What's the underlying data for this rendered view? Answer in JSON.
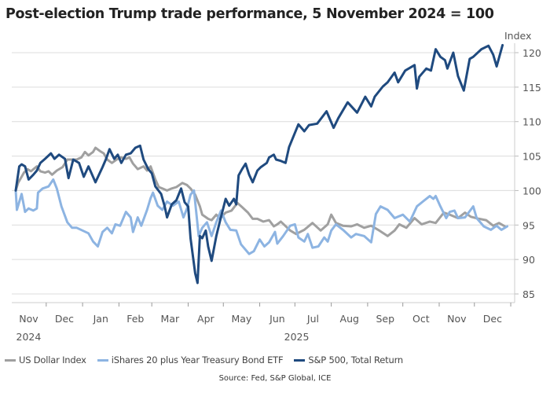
{
  "chart_data": {
    "type": "line",
    "title": "Post-election Trump trade performance, 5 November 2024 = 100",
    "ylabel": "Index",
    "xlabel": "",
    "x_units": "days since 5 November 2024",
    "xlim": [
      0,
      424
    ],
    "ylim": [
      84,
      122
    ],
    "yticks": [
      85,
      90,
      95,
      100,
      105,
      110,
      115,
      120
    ],
    "grid": true,
    "legend_position": "bottom",
    "month_ticks": [
      -4,
      26,
      57,
      88,
      116,
      147,
      177,
      208,
      238,
      269,
      300,
      330,
      361,
      391,
      422
    ],
    "month_labels": [
      "Nov",
      "Dec",
      "Jan",
      "Feb",
      "Mar",
      "Apr",
      "May",
      "Jun",
      "Jul",
      "Aug",
      "Sep",
      "Oct",
      "Nov",
      "Dec"
    ],
    "year_labels": [
      {
        "label": "2024",
        "from": -4,
        "to": 26
      },
      {
        "label": "2025",
        "from": 57,
        "to": 422
      }
    ],
    "series": [
      {
        "name": "US Dollar Index",
        "color": "#a0a0a0",
        "points": [
          [
            0,
            100
          ],
          [
            2,
            101.1
          ],
          [
            7,
            102.6
          ],
          [
            10,
            103.1
          ],
          [
            13,
            102.8
          ],
          [
            18,
            103.5
          ],
          [
            21,
            102.8
          ],
          [
            25,
            102.6
          ],
          [
            28,
            102.8
          ],
          [
            31,
            102.3
          ],
          [
            35,
            102.9
          ],
          [
            40,
            103.4
          ],
          [
            44,
            104.5
          ],
          [
            48,
            104.5
          ],
          [
            52,
            104.5
          ],
          [
            56,
            104.8
          ],
          [
            59,
            105.6
          ],
          [
            62,
            105.1
          ],
          [
            66,
            105.6
          ],
          [
            68,
            106.2
          ],
          [
            72,
            105.7
          ],
          [
            75,
            105.4
          ],
          [
            78,
            104.5
          ],
          [
            82,
            104.0
          ],
          [
            86,
            104.5
          ],
          [
            90,
            104.8
          ],
          [
            94,
            104.6
          ],
          [
            97,
            104.8
          ],
          [
            100,
            103.9
          ],
          [
            104,
            103.1
          ],
          [
            109,
            103.5
          ],
          [
            112,
            102.9
          ],
          [
            115,
            103.5
          ],
          [
            119,
            101.6
          ],
          [
            122,
            100.5
          ],
          [
            125,
            100.3
          ],
          [
            129,
            100.0
          ],
          [
            133,
            100.3
          ],
          [
            137,
            100.5
          ],
          [
            142,
            101.1
          ],
          [
            146,
            100.8
          ],
          [
            149,
            100.3
          ],
          [
            153,
            99.4
          ],
          [
            157,
            97.7
          ],
          [
            159,
            96.5
          ],
          [
            164,
            95.9
          ],
          [
            167,
            95.7
          ],
          [
            171,
            96.5
          ],
          [
            174,
            95.9
          ],
          [
            179,
            96.8
          ],
          [
            184,
            97.1
          ],
          [
            189,
            98.2
          ],
          [
            193,
            97.6
          ],
          [
            198,
            96.8
          ],
          [
            202,
            95.9
          ],
          [
            206,
            95.9
          ],
          [
            211,
            95.5
          ],
          [
            216,
            95.7
          ],
          [
            220,
            94.8
          ],
          [
            223,
            95.1
          ],
          [
            226,
            95.5
          ],
          [
            234,
            94.2
          ],
          [
            239,
            93.7
          ],
          [
            246,
            94.3
          ],
          [
            253,
            95.3
          ],
          [
            260,
            94.2
          ],
          [
            266,
            95.1
          ],
          [
            269,
            96.5
          ],
          [
            273,
            95.3
          ],
          [
            279,
            94.9
          ],
          [
            286,
            94.8
          ],
          [
            291,
            95.1
          ],
          [
            297,
            94.6
          ],
          [
            303,
            94.9
          ],
          [
            309,
            94.3
          ],
          [
            317,
            93.4
          ],
          [
            323,
            94.2
          ],
          [
            327,
            95.1
          ],
          [
            333,
            94.6
          ],
          [
            340,
            96.0
          ],
          [
            346,
            95.1
          ],
          [
            353,
            95.5
          ],
          [
            358,
            95.3
          ],
          [
            365,
            96.8
          ],
          [
            370,
            96.5
          ],
          [
            377,
            96.0
          ],
          [
            383,
            96.8
          ],
          [
            388,
            96.2
          ],
          [
            395,
            95.9
          ],
          [
            401,
            95.7
          ],
          [
            407,
            94.9
          ],
          [
            412,
            95.3
          ],
          [
            417,
            94.8
          ]
        ]
      },
      {
        "name": "iShares 20 plus Year Treasury Bond ETF",
        "color": "#8db4e2",
        "points": [
          [
            0,
            100
          ],
          [
            1,
            97.2
          ],
          [
            5,
            99.5
          ],
          [
            8,
            96.9
          ],
          [
            11,
            97.4
          ],
          [
            15,
            97.1
          ],
          [
            18,
            97.4
          ],
          [
            19,
            99.7
          ],
          [
            23,
            100.3
          ],
          [
            28,
            100.6
          ],
          [
            32,
            101.6
          ],
          [
            35,
            100.3
          ],
          [
            39,
            97.7
          ],
          [
            44,
            95.4
          ],
          [
            48,
            94.6
          ],
          [
            52,
            94.6
          ],
          [
            57,
            94.2
          ],
          [
            62,
            93.8
          ],
          [
            66,
            92.6
          ],
          [
            70,
            91.9
          ],
          [
            74,
            94.0
          ],
          [
            78,
            94.6
          ],
          [
            82,
            93.8
          ],
          [
            85,
            95.1
          ],
          [
            89,
            94.9
          ],
          [
            94,
            96.9
          ],
          [
            98,
            96.1
          ],
          [
            100,
            94.0
          ],
          [
            104,
            96.1
          ],
          [
            107,
            94.9
          ],
          [
            112,
            97.2
          ],
          [
            115,
            98.9
          ],
          [
            117,
            99.7
          ],
          [
            121,
            97.8
          ],
          [
            125,
            97.2
          ],
          [
            129,
            98.4
          ],
          [
            134,
            97.8
          ],
          [
            139,
            98.4
          ],
          [
            143,
            96.1
          ],
          [
            146,
            97.4
          ],
          [
            149,
            99.4
          ],
          [
            152,
            100.0
          ],
          [
            156,
            93.4
          ],
          [
            159,
            94.6
          ],
          [
            163,
            95.4
          ],
          [
            167,
            93.4
          ],
          [
            171,
            95.4
          ],
          [
            175,
            97.1
          ],
          [
            179,
            95.4
          ],
          [
            183,
            94.3
          ],
          [
            188,
            94.2
          ],
          [
            192,
            92.2
          ],
          [
            199,
            90.8
          ],
          [
            203,
            91.2
          ],
          [
            208,
            92.9
          ],
          [
            212,
            91.9
          ],
          [
            216,
            92.5
          ],
          [
            221,
            94.0
          ],
          [
            223,
            92.3
          ],
          [
            228,
            93.4
          ],
          [
            234,
            94.9
          ],
          [
            238,
            95.1
          ],
          [
            241,
            93.2
          ],
          [
            246,
            92.6
          ],
          [
            249,
            93.7
          ],
          [
            253,
            91.7
          ],
          [
            258,
            91.9
          ],
          [
            263,
            93.2
          ],
          [
            266,
            92.6
          ],
          [
            269,
            94.2
          ],
          [
            273,
            95.1
          ],
          [
            279,
            94.3
          ],
          [
            286,
            93.2
          ],
          [
            290,
            93.7
          ],
          [
            297,
            93.4
          ],
          [
            303,
            92.5
          ],
          [
            307,
            96.6
          ],
          [
            311,
            97.7
          ],
          [
            317,
            97.2
          ],
          [
            323,
            96.0
          ],
          [
            330,
            96.5
          ],
          [
            336,
            95.5
          ],
          [
            342,
            97.7
          ],
          [
            347,
            98.4
          ],
          [
            353,
            99.2
          ],
          [
            356,
            98.8
          ],
          [
            358,
            99.2
          ],
          [
            362,
            97.7
          ],
          [
            367,
            96.0
          ],
          [
            370,
            96.9
          ],
          [
            374,
            97.1
          ],
          [
            377,
            96.0
          ],
          [
            383,
            96.1
          ],
          [
            390,
            97.7
          ],
          [
            393,
            96.0
          ],
          [
            399,
            94.8
          ],
          [
            405,
            94.3
          ],
          [
            410,
            94.9
          ],
          [
            414,
            94.3
          ],
          [
            419,
            94.8
          ]
        ]
      },
      {
        "name": "S&P 500, Total Return",
        "color": "#1f4a7f",
        "points": [
          [
            0,
            100
          ],
          [
            3,
            103.5
          ],
          [
            5,
            103.8
          ],
          [
            8,
            103.5
          ],
          [
            11,
            101.6
          ],
          [
            15,
            102.3
          ],
          [
            18,
            102.9
          ],
          [
            21,
            104.0
          ],
          [
            25,
            104.6
          ],
          [
            30,
            105.4
          ],
          [
            33,
            104.6
          ],
          [
            37,
            105.2
          ],
          [
            42,
            104.6
          ],
          [
            45,
            101.8
          ],
          [
            49,
            104.5
          ],
          [
            54,
            104.0
          ],
          [
            58,
            102.0
          ],
          [
            62,
            103.5
          ],
          [
            68,
            101.2
          ],
          [
            74,
            103.4
          ],
          [
            77,
            104.6
          ],
          [
            80,
            106.0
          ],
          [
            84,
            104.6
          ],
          [
            87,
            105.2
          ],
          [
            90,
            104.0
          ],
          [
            94,
            105.2
          ],
          [
            98,
            105.4
          ],
          [
            102,
            106.2
          ],
          [
            106,
            106.5
          ],
          [
            109,
            104.5
          ],
          [
            113,
            103.1
          ],
          [
            116,
            102.5
          ],
          [
            119,
            100.6
          ],
          [
            124,
            99.5
          ],
          [
            127,
            97.7
          ],
          [
            129,
            96.1
          ],
          [
            133,
            98.0
          ],
          [
            137,
            98.6
          ],
          [
            141,
            100.3
          ],
          [
            144,
            98.3
          ],
          [
            147,
            97.7
          ],
          [
            149,
            93.1
          ],
          [
            153,
            88.0
          ],
          [
            155,
            86.6
          ],
          [
            157,
            93.4
          ],
          [
            159,
            93.1
          ],
          [
            162,
            94.2
          ],
          [
            164,
            91.9
          ],
          [
            167,
            89.8
          ],
          [
            171,
            93.4
          ],
          [
            174,
            95.5
          ],
          [
            179,
            98.8
          ],
          [
            182,
            97.8
          ],
          [
            186,
            98.8
          ],
          [
            188,
            98.0
          ],
          [
            190,
            102.2
          ],
          [
            193,
            103.1
          ],
          [
            196,
            103.9
          ],
          [
            199,
            102.3
          ],
          [
            202,
            101.2
          ],
          [
            206,
            102.9
          ],
          [
            209,
            103.4
          ],
          [
            214,
            104.0
          ],
          [
            216,
            104.8
          ],
          [
            220,
            105.2
          ],
          [
            222,
            104.5
          ],
          [
            226,
            104.3
          ],
          [
            230,
            104.0
          ],
          [
            233,
            106.3
          ],
          [
            241,
            109.6
          ],
          [
            246,
            108.6
          ],
          [
            250,
            109.5
          ],
          [
            257,
            109.7
          ],
          [
            265,
            111.5
          ],
          [
            271,
            109.1
          ],
          [
            275,
            110.5
          ],
          [
            283,
            112.8
          ],
          [
            291,
            111.3
          ],
          [
            298,
            113.6
          ],
          [
            303,
            112.2
          ],
          [
            306,
            113.6
          ],
          [
            313,
            115.1
          ],
          [
            317,
            115.7
          ],
          [
            323,
            117.1
          ],
          [
            326,
            115.7
          ],
          [
            332,
            117.4
          ],
          [
            340,
            118.2
          ],
          [
            342,
            114.8
          ],
          [
            344,
            116.5
          ],
          [
            350,
            117.7
          ],
          [
            354,
            117.4
          ],
          [
            358,
            120.5
          ],
          [
            362,
            119.4
          ],
          [
            366,
            118.9
          ],
          [
            368,
            117.7
          ],
          [
            373,
            120.0
          ],
          [
            377,
            116.6
          ],
          [
            382,
            114.5
          ],
          [
            387,
            119.1
          ],
          [
            390,
            119.4
          ],
          [
            397,
            120.5
          ],
          [
            403,
            121.0
          ],
          [
            407,
            119.7
          ],
          [
            410,
            118.0
          ],
          [
            415,
            121.1
          ]
        ]
      }
    ],
    "source": "Source: Fed, S&P Global, ICE"
  }
}
